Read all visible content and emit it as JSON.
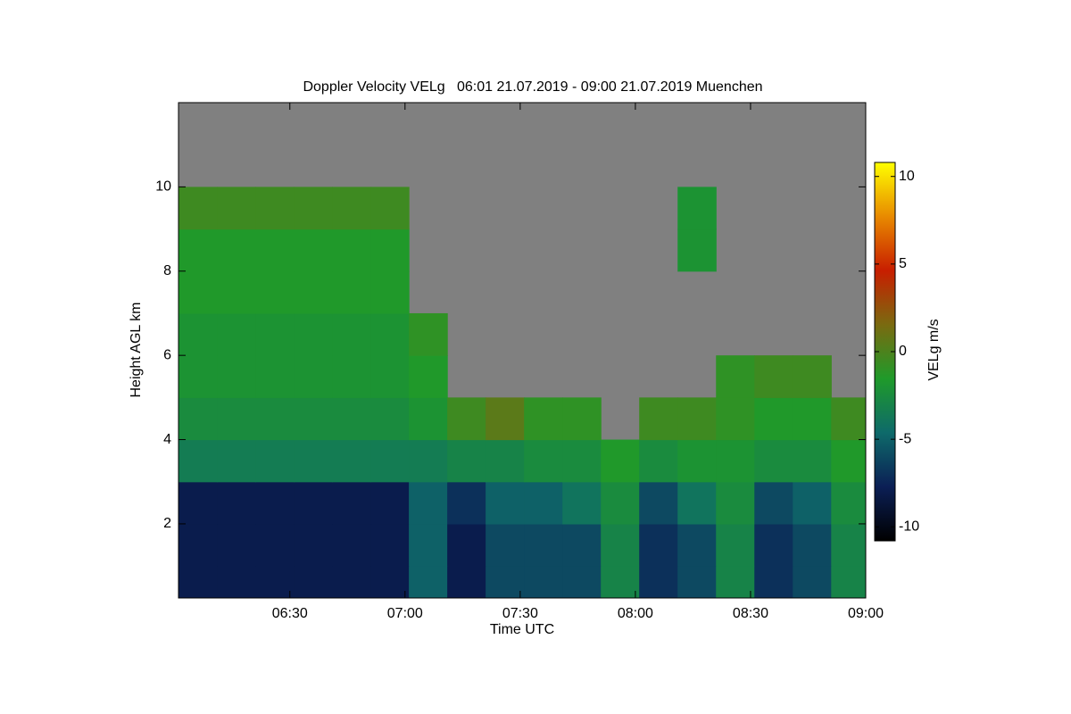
{
  "chart_data": {
    "type": "heatmap",
    "title": "Doppler Velocity VELg   06:01 21.07.2019 - 09:00 21.07.2019 Muenchen",
    "x_label": "Time UTC",
    "y_label": "Height AGL km",
    "colorbar_label": "VELg m/s",
    "x": [
      366,
      376,
      386,
      396,
      406,
      416,
      426,
      436,
      446,
      456,
      466,
      476,
      486,
      496,
      506,
      516,
      526,
      536
    ],
    "y": [
      0.5,
      1.5,
      2.5,
      3.5,
      4.5,
      5.5,
      6.5,
      7.5,
      8.5,
      9.5,
      10.5,
      11.5
    ],
    "values": [
      [
        -8,
        -8,
        -8,
        -8,
        -8,
        -8,
        -5,
        -8,
        -6,
        -6,
        -6,
        -3,
        -7,
        -6,
        -3,
        -7,
        -6,
        -3
      ],
      [
        -8,
        -8,
        -8,
        -8,
        -8,
        -8,
        -5,
        -8,
        -6,
        -6,
        -6,
        -3,
        -7,
        -6,
        -3,
        -7,
        -6,
        -3
      ],
      [
        -8,
        -8,
        -8,
        -8,
        -8,
        -8,
        -5,
        -7,
        -5,
        -5,
        -4,
        -2.5,
        -6,
        -4,
        -2.5,
        -6,
        -5,
        -2.5
      ],
      [
        -3.5,
        -3.5,
        -3.5,
        -3.5,
        -3.5,
        -3.5,
        -3.5,
        -3,
        -3,
        -2.5,
        -2.5,
        -1.5,
        -2.5,
        -2,
        -2,
        -2.5,
        -2.5,
        -1.5
      ],
      [
        -2.5,
        -2.5,
        -2.5,
        -2.5,
        -2.5,
        -2.5,
        -2,
        -0.5,
        0.5,
        -1,
        -1,
        null,
        -0.5,
        -0.5,
        -1,
        -1.5,
        -1.5,
        -0.5
      ],
      [
        -2,
        -2,
        -2,
        -2,
        -2,
        -2,
        -1.5,
        null,
        null,
        null,
        null,
        null,
        null,
        null,
        -1,
        -0.5,
        -0.5,
        null
      ],
      [
        -2,
        -2,
        -2,
        -2,
        -2,
        -2,
        -1,
        null,
        null,
        null,
        null,
        null,
        null,
        null,
        null,
        null,
        null,
        null
      ],
      [
        -1.5,
        -1.5,
        -1.5,
        -1.5,
        -1.5,
        -1.5,
        null,
        null,
        null,
        null,
        null,
        null,
        null,
        null,
        null,
        null,
        null,
        null
      ],
      [
        -1.5,
        -1.5,
        -1.5,
        -1.5,
        -1.5,
        -1.5,
        null,
        null,
        null,
        null,
        null,
        null,
        null,
        -2,
        null,
        null,
        null,
        null
      ],
      [
        -0.5,
        -0.5,
        -0.5,
        -0.5,
        -0.5,
        -0.5,
        null,
        null,
        null,
        null,
        null,
        null,
        null,
        -2,
        null,
        null,
        null,
        null
      ],
      [
        null,
        null,
        null,
        null,
        null,
        null,
        null,
        null,
        null,
        null,
        null,
        null,
        null,
        null,
        null,
        null,
        null,
        null
      ],
      [
        null,
        null,
        null,
        null,
        null,
        null,
        null,
        null,
        null,
        null,
        null,
        null,
        null,
        null,
        null,
        null,
        null,
        null
      ]
    ],
    "xlim": [
      361,
      540
    ],
    "xticks": [
      {
        "value": 390,
        "label": "06:30"
      },
      {
        "value": 420,
        "label": "07:00"
      },
      {
        "value": 450,
        "label": "07:30"
      },
      {
        "value": 480,
        "label": "08:00"
      },
      {
        "value": 510,
        "label": "08:30"
      },
      {
        "value": 540,
        "label": "09:00"
      }
    ],
    "ylim": [
      0.24,
      12
    ],
    "yticks": [
      2,
      4,
      6,
      8,
      10
    ],
    "zlim": [
      -10.8,
      10.8
    ],
    "zticks": [
      -10,
      -5,
      0,
      5,
      10
    ],
    "no_data_color": "#808080",
    "colorscale": [
      "#000000",
      "#0b1f55",
      "#0e6a6a",
      "#1f9a2a",
      "#7a6a10",
      "#c81e00",
      "#e88a00",
      "#ffff00"
    ]
  }
}
